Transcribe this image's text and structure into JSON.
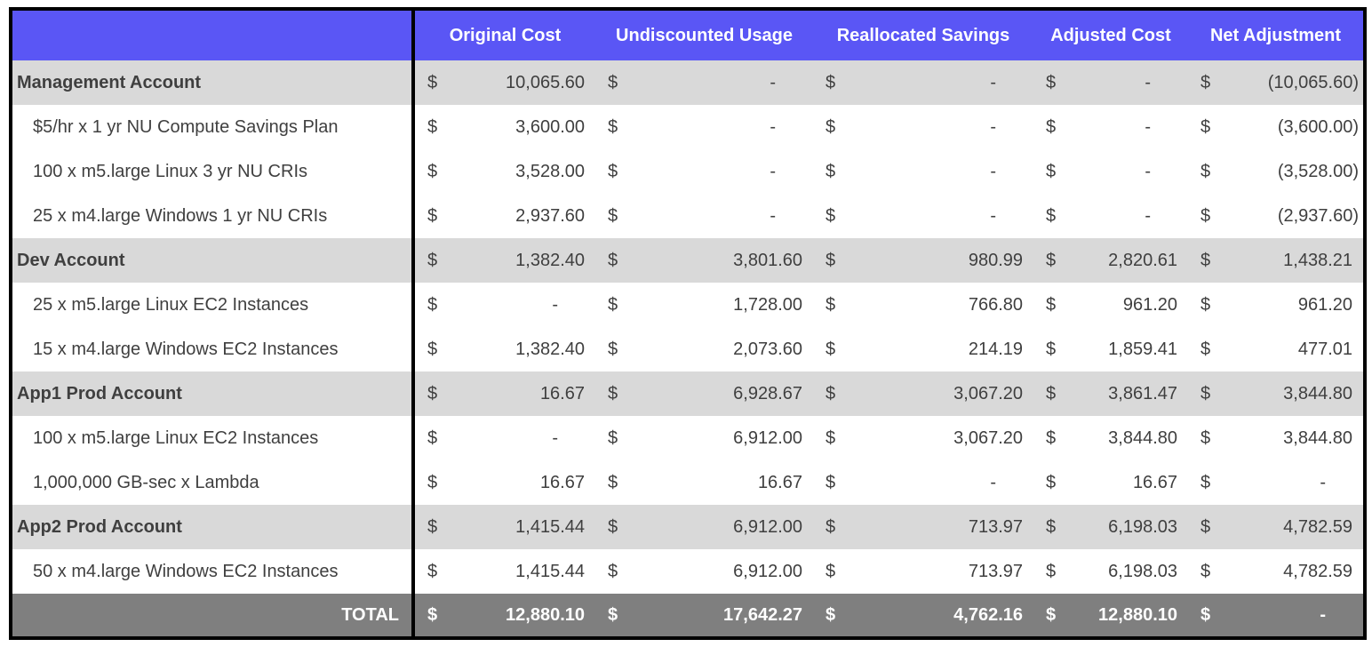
{
  "chart_data": {
    "type": "table",
    "currency_symbol": "$",
    "columns": [
      "Original Cost",
      "Undiscounted Usage",
      "Reallocated Savings",
      "Adjusted Cost",
      "Net Adjustment"
    ],
    "rows": [
      {
        "label": "Management Account",
        "level": "account",
        "values": [
          "10,065.60",
          "-",
          "-",
          "-",
          "(10,065.60)"
        ]
      },
      {
        "label": "$5/hr x 1 yr NU Compute Savings Plan",
        "level": "detail",
        "values": [
          "3,600.00",
          "-",
          "-",
          "-",
          "(3,600.00)"
        ]
      },
      {
        "label": "100 x m5.large Linux 3 yr NU CRIs",
        "level": "detail",
        "values": [
          "3,528.00",
          "-",
          "-",
          "-",
          "(3,528.00)"
        ]
      },
      {
        "label": "25 x m4.large Windows 1 yr NU CRIs",
        "level": "detail",
        "values": [
          "2,937.60",
          "-",
          "-",
          "-",
          "(2,937.60)"
        ]
      },
      {
        "label": "Dev Account",
        "level": "account",
        "values": [
          "1,382.40",
          "3,801.60",
          "980.99",
          "2,820.61",
          "1,438.21"
        ]
      },
      {
        "label": "25 x m5.large Linux EC2 Instances",
        "level": "detail",
        "values": [
          "-",
          "1,728.00",
          "766.80",
          "961.20",
          "961.20"
        ]
      },
      {
        "label": "15 x m4.large Windows EC2 Instances",
        "level": "detail",
        "values": [
          "1,382.40",
          "2,073.60",
          "214.19",
          "1,859.41",
          "477.01"
        ]
      },
      {
        "label": "App1 Prod Account",
        "level": "account",
        "values": [
          "16.67",
          "6,928.67",
          "3,067.20",
          "3,861.47",
          "3,844.80"
        ]
      },
      {
        "label": "100 x m5.large Linux EC2 Instances",
        "level": "detail",
        "values": [
          "-",
          "6,912.00",
          "3,067.20",
          "3,844.80",
          "3,844.80"
        ]
      },
      {
        "label": "1,000,000 GB-sec x Lambda",
        "level": "detail",
        "values": [
          "16.67",
          "16.67",
          "-",
          "16.67",
          "-"
        ]
      },
      {
        "label": "App2 Prod Account",
        "level": "account",
        "values": [
          "1,415.44",
          "6,912.00",
          "713.97",
          "6,198.03",
          "4,782.59"
        ]
      },
      {
        "label": "50 x m4.large Windows EC2 Instances",
        "level": "detail",
        "values": [
          "1,415.44",
          "6,912.00",
          "713.97",
          "6,198.03",
          "4,782.59"
        ]
      },
      {
        "label": "TOTAL",
        "level": "total",
        "values": [
          "12,880.10",
          "17,642.27",
          "4,762.16",
          "12,880.10",
          "-"
        ]
      }
    ]
  },
  "colors": {
    "header_bg": "#5A56F5",
    "header_text": "#FFFFFF",
    "account_row_bg": "#D9D9D9",
    "detail_row_bg": "#FFFFFF",
    "total_row_bg": "#7F7F7F",
    "total_row_text": "#FFFFFF",
    "body_text": "#3F3F3F",
    "border": "#000000"
  }
}
